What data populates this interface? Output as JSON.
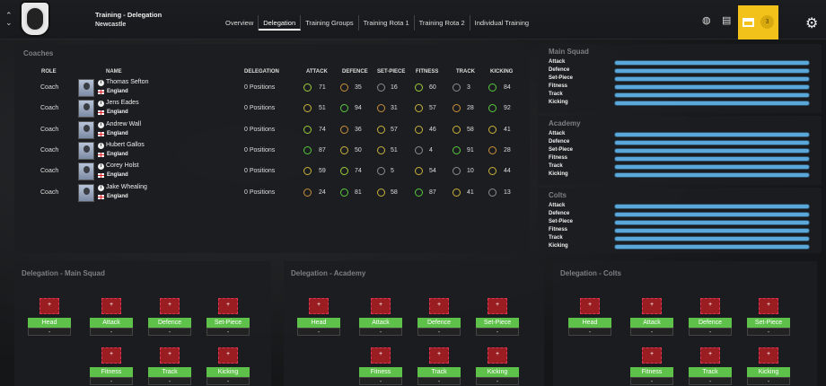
{
  "header": {
    "title": "Training - Delegation",
    "subtitle": "Newcastle",
    "tabs": [
      {
        "label": "Overview"
      },
      {
        "label": "Delegation"
      },
      {
        "label": "Training Groups"
      },
      {
        "label": "Training Rota 1"
      },
      {
        "label": "Training Rota 2"
      },
      {
        "label": "Individual Training"
      }
    ],
    "inbox_count": "3",
    "accent": "#f2c21b"
  },
  "coaches": {
    "title": "Coaches",
    "columns": [
      "ROLE",
      "NAME",
      "DELEGATION",
      "ATTACK",
      "DEFENCE",
      "SET-PIECE",
      "FITNESS",
      "TRACK",
      "KICKING"
    ],
    "rows": [
      {
        "role": "Coach",
        "name": "Thomas Sefton",
        "nationality": "England",
        "delegation": "0 Positions",
        "scores": [
          "71",
          "35",
          "16",
          "60",
          "3",
          "84"
        ]
      },
      {
        "role": "Coach",
        "name": "Jens Eades",
        "nationality": "England",
        "delegation": "0 Positions",
        "scores": [
          "51",
          "94",
          "31",
          "57",
          "28",
          "92"
        ]
      },
      {
        "role": "Coach",
        "name": "Andrew Wall",
        "nationality": "England",
        "delegation": "0 Positions",
        "scores": [
          "74",
          "36",
          "57",
          "46",
          "58",
          "41"
        ]
      },
      {
        "role": "Coach",
        "name": "Hubert Gallos",
        "nationality": "England",
        "delegation": "0 Positions",
        "scores": [
          "87",
          "50",
          "51",
          "4",
          "91",
          "28"
        ]
      },
      {
        "role": "Coach",
        "name": "Corey Holst",
        "nationality": "England",
        "delegation": "0 Positions",
        "scores": [
          "59",
          "74",
          "5",
          "54",
          "10",
          "44"
        ]
      },
      {
        "role": "Coach",
        "name": "Jake Whealing",
        "nationality": "England",
        "delegation": "0 Positions",
        "scores": [
          "24",
          "81",
          "58",
          "87",
          "41",
          "13"
        ]
      }
    ]
  },
  "squads": [
    {
      "title": "Main Squad",
      "labels": [
        "Attack",
        "Defence",
        "Set-Piece",
        "Fitness",
        "Track",
        "Kicking"
      ]
    },
    {
      "title": "Academy",
      "labels": [
        "Attack",
        "Defence",
        "Set-Piece",
        "Fitness",
        "Track",
        "Kicking"
      ]
    },
    {
      "title": "Colts",
      "labels": [
        "Attack",
        "Defence",
        "Set-Piece",
        "Fitness",
        "Track",
        "Kicking"
      ]
    }
  ],
  "delegation_panels": [
    {
      "title": "Delegation - Main Squad",
      "slots": [
        {
          "label": "Head",
          "value": "-"
        },
        {
          "label": "Attack",
          "value": "-"
        },
        {
          "label": "Defence",
          "value": "-"
        },
        {
          "label": "Set-Piece",
          "value": "-"
        },
        {
          "label": "Fitness",
          "value": "-"
        },
        {
          "label": "Track",
          "value": "-"
        },
        {
          "label": "Kicking",
          "value": "-"
        }
      ]
    },
    {
      "title": "Delegation - Academy",
      "slots": [
        {
          "label": "Head",
          "value": "-"
        },
        {
          "label": "Attack",
          "value": "-"
        },
        {
          "label": "Defence",
          "value": "-"
        },
        {
          "label": "Set-Piece",
          "value": "-"
        },
        {
          "label": "Fitness",
          "value": "-"
        },
        {
          "label": "Track",
          "value": "-"
        },
        {
          "label": "Kicking",
          "value": "-"
        }
      ]
    },
    {
      "title": "Delegation - Colts",
      "slots": [
        {
          "label": "Head",
          "value": "-"
        },
        {
          "label": "Attack",
          "value": "-"
        },
        {
          "label": "Defence",
          "value": "-"
        },
        {
          "label": "Set-Piece",
          "value": "-"
        },
        {
          "label": "Fitness",
          "value": "-"
        },
        {
          "label": "Track",
          "value": "-"
        },
        {
          "label": "Kicking",
          "value": "-"
        }
      ]
    }
  ]
}
